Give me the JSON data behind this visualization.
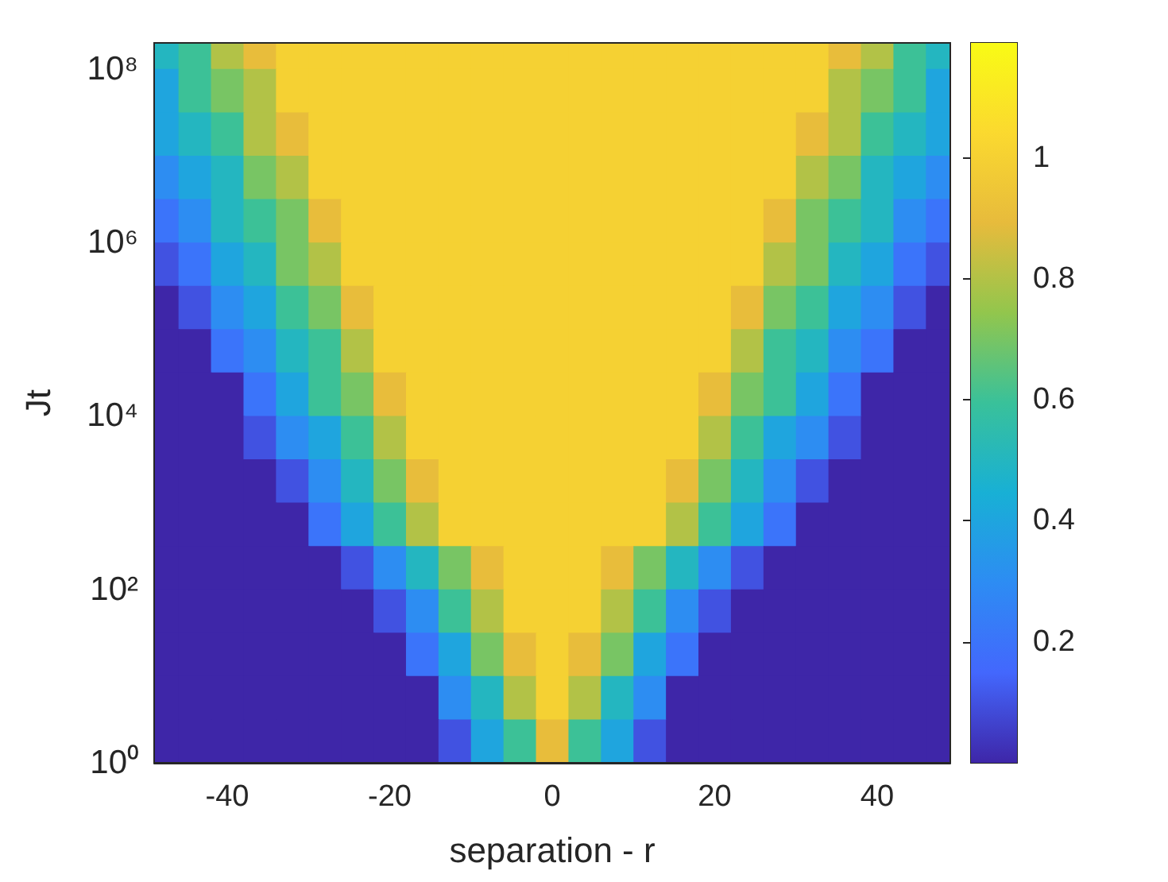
{
  "chart_data": {
    "type": "heatmap",
    "xlabel": "separation - r",
    "ylabel": "Jt",
    "log": "y",
    "x": [
      -48,
      -44,
      -40,
      -36,
      -32,
      -28,
      -24,
      -20,
      -16,
      -12,
      -8,
      -4,
      0,
      4,
      8,
      12,
      16,
      20,
      24,
      28,
      32,
      36,
      40,
      44,
      48
    ],
    "y": [
      178000000,
      56200000,
      17800000,
      5620000,
      1780000,
      562000,
      178000,
      56200,
      17800,
      5620,
      1780,
      562,
      178,
      56.2,
      17.8,
      5.62,
      1.78
    ],
    "cells": [
      [
        0.5,
        0.6,
        0.8,
        0.9,
        1,
        1,
        1,
        1,
        1,
        1,
        1,
        1,
        1,
        1,
        1,
        1,
        1,
        1,
        1,
        1,
        1,
        0.9,
        0.8,
        0.6,
        0.5
      ],
      [
        0.4,
        0.6,
        0.7,
        0.8,
        1,
        1,
        1,
        1,
        1,
        1,
        1,
        1,
        1,
        1,
        1,
        1,
        1,
        1,
        1,
        1,
        1,
        0.8,
        0.7,
        0.6,
        0.4
      ],
      [
        0.4,
        0.5,
        0.6,
        0.8,
        0.9,
        1,
        1,
        1,
        1,
        1,
        1,
        1,
        1,
        1,
        1,
        1,
        1,
        1,
        1,
        1,
        0.9,
        0.8,
        0.6,
        0.5,
        0.4
      ],
      [
        0.3,
        0.4,
        0.5,
        0.7,
        0.8,
        1,
        1,
        1,
        1,
        1,
        1,
        1,
        1,
        1,
        1,
        1,
        1,
        1,
        1,
        1,
        0.8,
        0.7,
        0.5,
        0.4,
        0.3
      ],
      [
        0.2,
        0.3,
        0.5,
        0.6,
        0.7,
        0.9,
        1,
        1,
        1,
        1,
        1,
        1,
        1,
        1,
        1,
        1,
        1,
        1,
        1,
        0.9,
        0.7,
        0.6,
        0.5,
        0.3,
        0.2
      ],
      [
        0.1,
        0.2,
        0.4,
        0.5,
        0.7,
        0.8,
        1,
        1,
        1,
        1,
        1,
        1,
        1,
        1,
        1,
        1,
        1,
        1,
        1,
        0.8,
        0.7,
        0.5,
        0.4,
        0.2,
        0.1
      ],
      [
        0,
        0.1,
        0.3,
        0.4,
        0.6,
        0.7,
        0.9,
        1,
        1,
        1,
        1,
        1,
        1,
        1,
        1,
        1,
        1,
        1,
        0.9,
        0.7,
        0.6,
        0.4,
        0.3,
        0.1,
        0
      ],
      [
        0,
        0,
        0.2,
        0.3,
        0.5,
        0.6,
        0.8,
        1,
        1,
        1,
        1,
        1,
        1,
        1,
        1,
        1,
        1,
        1,
        0.8,
        0.6,
        0.5,
        0.3,
        0.2,
        0,
        0
      ],
      [
        0,
        0,
        0,
        0.2,
        0.4,
        0.6,
        0.7,
        0.9,
        1,
        1,
        1,
        1,
        1,
        1,
        1,
        1,
        1,
        0.9,
        0.7,
        0.6,
        0.4,
        0.2,
        0,
        0,
        0
      ],
      [
        0,
        0,
        0,
        0.1,
        0.3,
        0.4,
        0.6,
        0.8,
        1,
        1,
        1,
        1,
        1,
        1,
        1,
        1,
        1,
        0.8,
        0.6,
        0.4,
        0.3,
        0.1,
        0,
        0,
        0
      ],
      [
        0,
        0,
        0,
        0,
        0.1,
        0.3,
        0.5,
        0.7,
        0.9,
        1,
        1,
        1,
        1,
        1,
        1,
        1,
        0.9,
        0.7,
        0.5,
        0.3,
        0.1,
        0,
        0,
        0,
        0
      ],
      [
        0,
        0,
        0,
        0,
        0,
        0.2,
        0.4,
        0.6,
        0.8,
        1,
        1,
        1,
        1,
        1,
        1,
        1,
        0.8,
        0.6,
        0.4,
        0.2,
        0,
        0,
        0,
        0,
        0
      ],
      [
        0,
        0,
        0,
        0,
        0,
        0,
        0.1,
        0.3,
        0.5,
        0.7,
        0.9,
        1,
        1,
        1,
        0.9,
        0.7,
        0.5,
        0.3,
        0.1,
        0,
        0,
        0,
        0,
        0,
        0
      ],
      [
        0,
        0,
        0,
        0,
        0,
        0,
        0,
        0.1,
        0.3,
        0.6,
        0.8,
        1,
        1,
        1,
        0.8,
        0.6,
        0.3,
        0.1,
        0,
        0,
        0,
        0,
        0,
        0,
        0
      ],
      [
        0,
        0,
        0,
        0,
        0,
        0,
        0,
        0,
        0.2,
        0.4,
        0.7,
        0.9,
        1,
        0.9,
        0.7,
        0.4,
        0.2,
        0,
        0,
        0,
        0,
        0,
        0,
        0,
        0
      ],
      [
        0,
        0,
        0,
        0,
        0,
        0,
        0,
        0,
        0,
        0.3,
        0.5,
        0.8,
        1,
        0.8,
        0.5,
        0.3,
        0,
        0,
        0,
        0,
        0,
        0,
        0,
        0,
        0
      ],
      [
        0,
        0,
        0,
        0,
        0,
        0,
        0,
        0,
        0,
        0.1,
        0.4,
        0.6,
        0.9,
        0.6,
        0.4,
        0.1,
        0,
        0,
        0,
        0,
        0,
        0,
        0,
        0,
        0
      ]
    ],
    "xlim": [
      -49,
      49
    ],
    "xticks": [
      -40,
      -20,
      0,
      20,
      40
    ],
    "ylim": [
      1,
      200000000
    ],
    "yticks": [
      {
        "value": 1,
        "label": "10⁰"
      },
      {
        "value": 100,
        "label": "10²"
      },
      {
        "value": 10000,
        "label": "10⁴"
      },
      {
        "value": 1000000,
        "label": "10⁶"
      },
      {
        "value": 100000000,
        "label": "10⁸"
      }
    ],
    "clim": [
      0,
      1.19
    ],
    "cticks": [
      0.2,
      0.4,
      0.6,
      0.8,
      1
    ],
    "colors": [
      "#3e26a8",
      "#4367fd",
      "#2d8cf3",
      "#18b0d5",
      "#39c19a",
      "#92c64d",
      "#e7bb3c",
      "#fbd92f",
      "#f9fb15"
    ]
  }
}
